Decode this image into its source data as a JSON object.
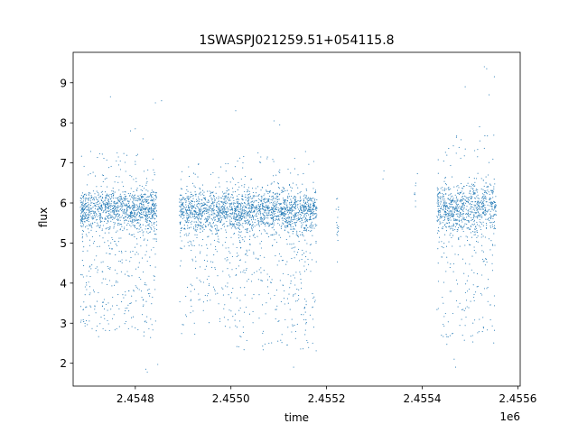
{
  "chart_data": {
    "type": "scatter",
    "title": "1SWASPJ021259.51+054115.8",
    "xlabel": "time",
    "ylabel": "flux",
    "x_offset_label": "1e6",
    "xlim": [
      2454670,
      2455605
    ],
    "ylim": [
      1.43,
      9.76
    ],
    "x_ticks": [
      2454800,
      2455000,
      2455200,
      2455400,
      2455600
    ],
    "x_tick_labels": [
      "2.4548",
      "2.4550",
      "2.4552",
      "2.4554",
      "2.4556"
    ],
    "y_ticks": [
      2,
      3,
      4,
      5,
      6,
      7,
      8,
      9
    ],
    "y_tick_labels": [
      "2",
      "3",
      "4",
      "5",
      "6",
      "7",
      "8",
      "9"
    ],
    "grid": false,
    "legend": "none",
    "marker_color": "#1f77b4",
    "series": [
      {
        "segments": [
          {
            "x_start": 2454685,
            "x_end": 2454845,
            "median": 5.85,
            "core_spread": 0.25,
            "upper_tail": 7.3,
            "lower_tail": 2.6,
            "density": 1.0
          },
          {
            "x_start": 2454892,
            "x_end": 2455012,
            "median": 5.8,
            "core_spread": 0.25,
            "upper_tail": 7.0,
            "lower_tail": 2.7,
            "density": 0.9
          },
          {
            "x_start": 2455012,
            "x_end": 2455180,
            "median": 5.8,
            "core_spread": 0.25,
            "upper_tail": 7.3,
            "lower_tail": 2.3,
            "density": 1.0
          },
          {
            "x_start": 2455220,
            "x_end": 2455225,
            "median": 5.6,
            "core_spread": 0.3,
            "upper_tail": 6.2,
            "lower_tail": 3.6,
            "density": 0.08
          },
          {
            "x_start": 2455383,
            "x_end": 2455398,
            "median": 6.3,
            "core_spread": 0.2,
            "upper_tail": 6.8,
            "lower_tail": 6.0,
            "density": 0.04
          },
          {
            "x_start": 2455430,
            "x_end": 2455555,
            "median": 5.9,
            "core_spread": 0.3,
            "upper_tail": 7.7,
            "lower_tail": 2.4,
            "density": 0.9
          }
        ],
        "outliers": [
          [
            2454748,
            8.65
          ],
          [
            2454790,
            7.8
          ],
          [
            2454800,
            7.85
          ],
          [
            2454816,
            7.6
          ],
          [
            2454842,
            8.5
          ],
          [
            2454855,
            8.55
          ],
          [
            2454822,
            1.85
          ],
          [
            2454825,
            1.78
          ],
          [
            2454847,
            1.97
          ],
          [
            2455010,
            8.3
          ],
          [
            2455090,
            8.05
          ],
          [
            2455102,
            7.95
          ],
          [
            2455131,
            1.9
          ],
          [
            2455490,
            8.9
          ],
          [
            2455520,
            7.9
          ],
          [
            2455530,
            9.4
          ],
          [
            2455535,
            9.35
          ],
          [
            2455551,
            9.15
          ],
          [
            2455467,
            2.1
          ],
          [
            2455470,
            1.9
          ],
          [
            2455540,
            8.7
          ],
          [
            2455320,
            6.8
          ],
          [
            2455318,
            6.6
          ]
        ]
      }
    ]
  }
}
